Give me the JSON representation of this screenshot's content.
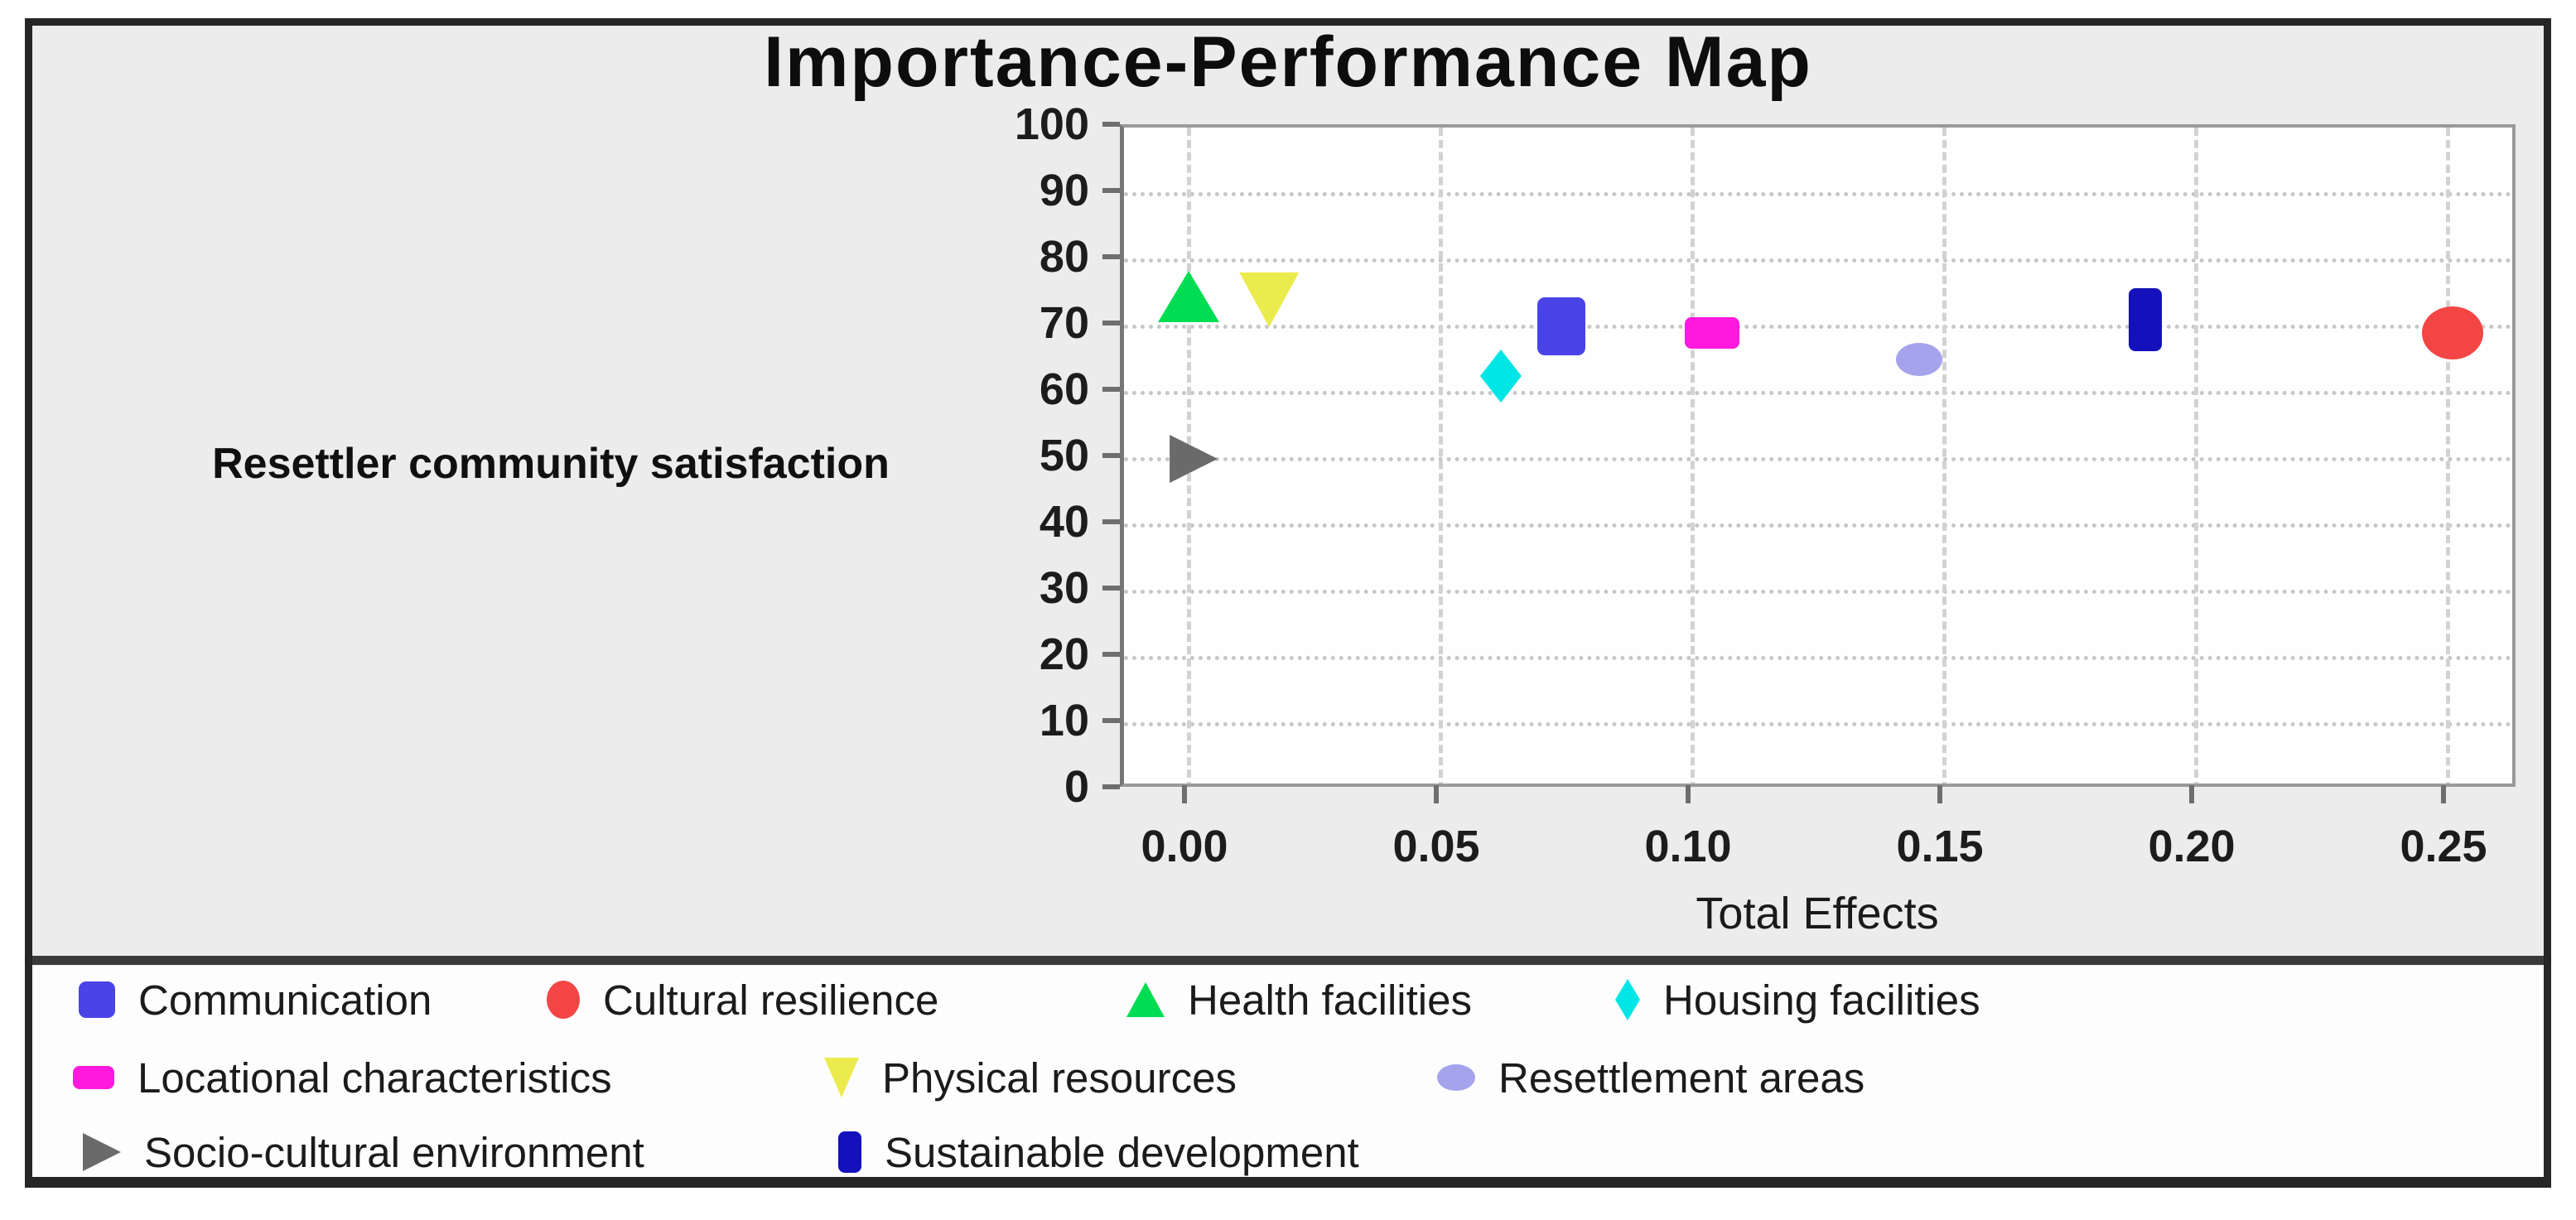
{
  "figure": {
    "title": "Importance-Performance Map",
    "left_axis_caption": "Resettler community satisfaction",
    "x_axis_label": "Total Effects"
  },
  "chart_data": {
    "type": "scatter",
    "title": "Importance-Performance Map",
    "xlabel": "Total Effects",
    "ylabel": "Resettler community satisfaction",
    "xlim": [
      -0.013,
      0.264
    ],
    "ylim": [
      0,
      100
    ],
    "grid": {
      "horizontal": "dotted line at every y tick",
      "vertical": "dashed line at every x tick"
    },
    "legend_position": "bottom",
    "x_axis": {
      "ticks": [
        {
          "value": 0.0,
          "label": "0.00"
        },
        {
          "value": 0.05,
          "label": "0.05"
        },
        {
          "value": 0.1,
          "label": "0.10"
        },
        {
          "value": 0.15,
          "label": "0.15"
        },
        {
          "value": 0.2,
          "label": "0.20"
        },
        {
          "value": 0.25,
          "label": "0.25"
        }
      ]
    },
    "y_axis": {
      "ticks": [
        {
          "value": 0,
          "label": "0"
        },
        {
          "value": 10,
          "label": "10"
        },
        {
          "value": 20,
          "label": "20"
        },
        {
          "value": 30,
          "label": "30"
        },
        {
          "value": 40,
          "label": "40"
        },
        {
          "value": 50,
          "label": "50"
        },
        {
          "value": 60,
          "label": "60"
        },
        {
          "value": 70,
          "label": "70"
        },
        {
          "value": 80,
          "label": "80"
        },
        {
          "value": 90,
          "label": "90"
        },
        {
          "value": 100,
          "label": "100"
        }
      ]
    },
    "series": [
      {
        "name": "Communication",
        "marker": "square",
        "color": "#4a43e6",
        "x": 0.074,
        "y": 70
      },
      {
        "name": "Cultural resilience",
        "marker": "circle",
        "color": "#f34545",
        "x": 0.251,
        "y": 69
      },
      {
        "name": "Health facilities",
        "marker": "triangle-up",
        "color": "#00dd52",
        "x": 0.0,
        "y": 74.5
      },
      {
        "name": "Housing facilities",
        "marker": "diamond",
        "color": "#00e6e6",
        "x": 0.062,
        "y": 62.5
      },
      {
        "name": "Locational characteristics",
        "marker": "rect-flat",
        "color": "#ff18dd",
        "x": 0.104,
        "y": 69
      },
      {
        "name": "Physical resources",
        "marker": "triangle-down",
        "color": "#ebeb4d",
        "x": 0.016,
        "y": 74
      },
      {
        "name": "Resettlement areas",
        "marker": "ellipse",
        "color": "#a5a3ec",
        "x": 0.145,
        "y": 65
      },
      {
        "name": "Socio-cultural environment",
        "marker": "triangle-right",
        "color": "#6a6a6a",
        "x": 0.001,
        "y": 50
      },
      {
        "name": "Sustainable development",
        "marker": "rect-tall",
        "color": "#1410bb",
        "x": 0.19,
        "y": 71
      }
    ],
    "legend_rows": [
      [
        "Communication",
        "Cultural resilience",
        "Health facilities",
        "Housing facilities"
      ],
      [
        "Locational characteristics",
        "Physical resources",
        "Resettlement areas"
      ],
      [
        "Socio-cultural environment",
        "Sustainable development"
      ]
    ]
  }
}
